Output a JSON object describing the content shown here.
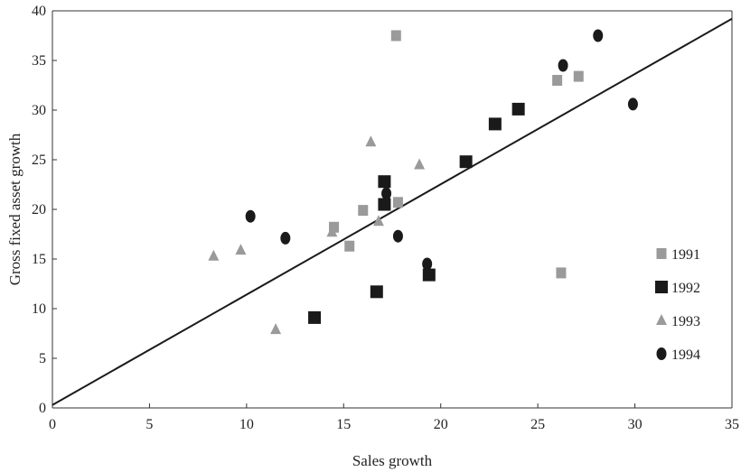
{
  "chart_data": {
    "type": "scatter",
    "title": "",
    "xlabel": "Sales growth",
    "ylabel": "Gross fixed asset growth",
    "xlim": [
      0,
      35
    ],
    "ylim": [
      0,
      40
    ],
    "xticks": [
      0,
      5,
      10,
      15,
      20,
      25,
      30,
      35
    ],
    "yticks": [
      0,
      5,
      10,
      15,
      20,
      25,
      30,
      35,
      40
    ],
    "legend_position": "right",
    "series": [
      {
        "name": "1991",
        "marker": "square-small",
        "color": "#9a9a9a",
        "points": [
          [
            17.7,
            37.5
          ],
          [
            14.5,
            18.2
          ],
          [
            15.3,
            16.3
          ],
          [
            16.0,
            19.9
          ],
          [
            17.8,
            20.7
          ],
          [
            26.0,
            33.0
          ],
          [
            27.1,
            33.4
          ],
          [
            26.2,
            13.6
          ]
        ]
      },
      {
        "name": "1992",
        "marker": "square-large",
        "color": "#1a1a1a",
        "points": [
          [
            13.5,
            9.1
          ],
          [
            16.7,
            11.7
          ],
          [
            17.1,
            20.5
          ],
          [
            17.1,
            22.8
          ],
          [
            19.4,
            13.4
          ],
          [
            21.3,
            24.8
          ],
          [
            22.8,
            28.6
          ],
          [
            24.0,
            30.1
          ]
        ]
      },
      {
        "name": "1993",
        "marker": "triangle",
        "color": "#9a9a9a",
        "points": [
          [
            8.3,
            15.3
          ],
          [
            9.7,
            15.9
          ],
          [
            11.5,
            7.9
          ],
          [
            14.4,
            17.7
          ],
          [
            16.4,
            26.8
          ],
          [
            16.8,
            18.8
          ],
          [
            18.9,
            24.5
          ]
        ]
      },
      {
        "name": "1994",
        "marker": "circle",
        "color": "#1a1a1a",
        "points": [
          [
            10.2,
            19.3
          ],
          [
            12.0,
            17.1
          ],
          [
            17.2,
            21.6
          ],
          [
            17.8,
            17.3
          ],
          [
            19.3,
            14.5
          ],
          [
            26.3,
            34.5
          ],
          [
            28.1,
            37.5
          ],
          [
            29.9,
            30.6
          ]
        ]
      }
    ],
    "fit_line": {
      "x": [
        0,
        35
      ],
      "y": [
        0.3,
        39.2
      ],
      "color": "#1a1a1a"
    }
  }
}
